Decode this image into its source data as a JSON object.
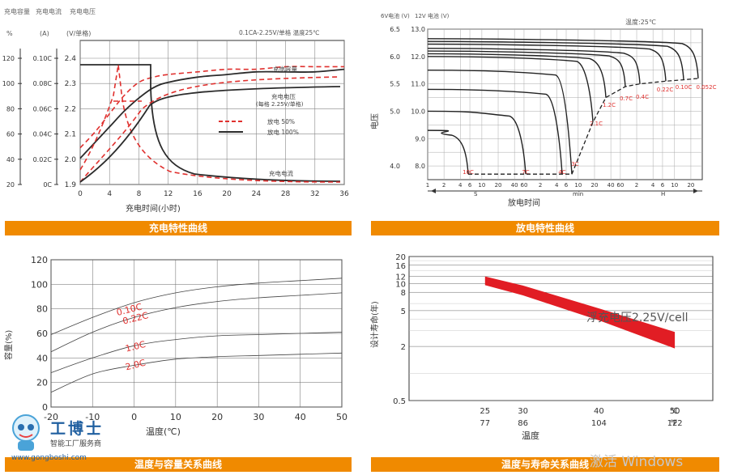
{
  "charging": {
    "legend_text": [
      "充电容量",
      "充电电流",
      "充电电压"
    ],
    "unit_labels": {
      "pct": "%",
      "amp": "(A)",
      "volt": "(V/单格)"
    },
    "cond": "0.1CA-2.25V/单格   温度25℃",
    "xlabel": "充电时间(小时)",
    "title": "充电特性曲线",
    "xticks": [
      0,
      4,
      8,
      12,
      16,
      20,
      24,
      28,
      32,
      36
    ],
    "pct_ticks": [
      "120",
      "100",
      "80",
      "60",
      "40",
      "20"
    ],
    "amp_ticks": [
      "0.10C",
      "0.08C",
      "0.06C",
      "0.04C",
      "0.02C",
      "0C"
    ],
    "volt_ticks": [
      "2.4",
      "2.3",
      "2.2",
      "2.1",
      "2.0",
      "1.9"
    ],
    "annot": {
      "cap": "充电容量",
      "volt": "充电电压",
      "volt2": "(每格 2.25V/单格)",
      "cur": "充电电流"
    },
    "legend": {
      "red": "放电 50%",
      "dark": "放电 100%"
    },
    "colors": {
      "red": "#e0302e",
      "dark": "#2b2b2b"
    }
  },
  "discharge": {
    "vlabel6": "6V电池\n(V)",
    "vlabel12": "12V 电池\n(V)",
    "temp": "温度:25℃",
    "v6_ticks": [
      "6.5",
      "6.0",
      "5.5",
      "5.0",
      "4.0"
    ],
    "v12_ticks": [
      "13.0",
      "12.0",
      "11.0",
      "10.0",
      "9.0",
      "8.0"
    ],
    "ylabel": "电压",
    "xticks": [
      "1",
      "2",
      "4",
      "6",
      "10",
      "20",
      "40",
      "60",
      "2",
      "4",
      "6",
      "10",
      "20",
      "40",
      "60",
      "2",
      "4",
      "6",
      "10",
      "20"
    ],
    "units": {
      "s": "S",
      "min": "min",
      "h": "H"
    },
    "xlabel": "放电时间",
    "title": "放电特性曲线",
    "rates": [
      "10C",
      "7C",
      "4C",
      "3C",
      "2.1C",
      "1.2C",
      "0.7C",
      "0.4C",
      "0.22C",
      "0.10C",
      "0.052C"
    ]
  },
  "temp_cap": {
    "ylabel": "容量(%)",
    "xlabel": "温度(℃)",
    "yticks": [
      "120",
      "100",
      "80",
      "60",
      "40",
      "20",
      "0"
    ],
    "xticks": [
      "-20",
      "-10",
      "0",
      "10",
      "20",
      "30",
      "40",
      "50"
    ],
    "curves": [
      "0.10C",
      "0.22C",
      "1.0C",
      "2.0C"
    ],
    "title": "温度与容量关系曲线"
  },
  "temp_life": {
    "ylabel": "设计寿命(年)",
    "yticks": [
      "20",
      "16",
      "12",
      "10",
      "8",
      "5",
      "2",
      "0.5"
    ],
    "c_ticks": [
      "25",
      "30",
      "40",
      "50"
    ],
    "f_ticks": [
      "77",
      "86",
      "104",
      "122"
    ],
    "c_unit": "℃",
    "f_unit": "℉",
    "xlabel": "温度",
    "annot": "浮充电压2.25V/cell",
    "title": "温度与寿命关系曲线"
  },
  "logo": {
    "name": "工博士",
    "sub": "智能工厂服务商",
    "url": "www.gongboshi.com"
  },
  "watermark": "激活 Windows",
  "chart_data": [
    {
      "type": "line",
      "title": "充电特性曲线",
      "xlabel": "充电时间(小时)",
      "xlim": [
        0,
        36
      ],
      "series": [
        {
          "name": "放电 100%",
          "x": [
            0,
            2,
            4,
            6,
            8,
            10,
            12,
            16,
            20,
            24,
            28,
            32,
            36
          ],
          "y": [
            2.0,
            2.06,
            2.12,
            2.18,
            2.23,
            2.27,
            2.29,
            2.31,
            2.32,
            2.33,
            2.33,
            2.33,
            2.34
          ]
        },
        {
          "name": "放电 50%",
          "x": [
            0,
            2,
            4,
            6,
            8,
            10,
            12,
            16,
            20,
            24,
            28,
            32,
            36
          ],
          "y": [
            2.04,
            2.1,
            2.17,
            2.24,
            2.29,
            2.31,
            2.32,
            2.33,
            2.34,
            2.34,
            2.35,
            2.35,
            2.35
          ]
        }
      ],
      "ylim": [
        1.9,
        2.45
      ]
    },
    {
      "type": "line",
      "title": "放电特性曲线",
      "xlabel": "放电时间",
      "ylabel": "电压",
      "ylim": [
        7.5,
        13.0
      ],
      "series": [
        {
          "name": "10C",
          "x": [
            "1s",
            "5s",
            "10s"
          ],
          "y": [
            9.3,
            9.2,
            7.7
          ]
        },
        {
          "name": "7C",
          "x": [
            "1s",
            "30s",
            "50s"
          ],
          "y": [
            10.0,
            9.6,
            7.7
          ]
        },
        {
          "name": "4C",
          "x": [
            "1s",
            "2min",
            "3min"
          ],
          "y": [
            10.8,
            10.3,
            7.7
          ]
        },
        {
          "name": "0.052C",
          "x": [
            "1s",
            "10h",
            "20h"
          ],
          "y": [
            12.9,
            12.7,
            10.8
          ]
        }
      ]
    },
    {
      "type": "line",
      "title": "温度与容量关系曲线",
      "xlabel": "温度(℃)",
      "ylabel": "容量(%)",
      "xlim": [
        -20,
        50
      ],
      "ylim": [
        0,
        120
      ],
      "series": [
        {
          "name": "0.10C",
          "x": [
            -20,
            -10,
            0,
            10,
            20,
            30,
            40,
            50
          ],
          "y": [
            59,
            73,
            85,
            93,
            98,
            101,
            103,
            105
          ]
        },
        {
          "name": "0.22C",
          "x": [
            -20,
            -10,
            0,
            10,
            20,
            30,
            40,
            50
          ],
          "y": [
            45,
            61,
            73,
            81,
            86,
            89,
            91,
            93
          ]
        },
        {
          "name": "1.0C",
          "x": [
            -20,
            -10,
            0,
            10,
            20,
            30,
            40,
            50
          ],
          "y": [
            28,
            40,
            50,
            55,
            58,
            59,
            60,
            61
          ]
        },
        {
          "name": "2.0C",
          "x": [
            -20,
            -10,
            0,
            10,
            20,
            30,
            40,
            50
          ],
          "y": [
            12,
            27,
            34,
            39,
            41,
            42,
            43,
            44
          ]
        }
      ]
    },
    {
      "type": "area",
      "title": "温度与寿命关系曲线",
      "xlabel": "温度",
      "ylabel": "设计寿命(年)",
      "series": [
        {
          "name": "上限",
          "x": [
            25,
            30,
            40,
            50
          ],
          "y": [
            12.0,
            9.5,
            5.3,
            2.9
          ]
        },
        {
          "name": "下限",
          "x": [
            25,
            30,
            40,
            50
          ],
          "y": [
            9.6,
            7.4,
            3.9,
            1.9
          ]
        }
      ]
    }
  ]
}
